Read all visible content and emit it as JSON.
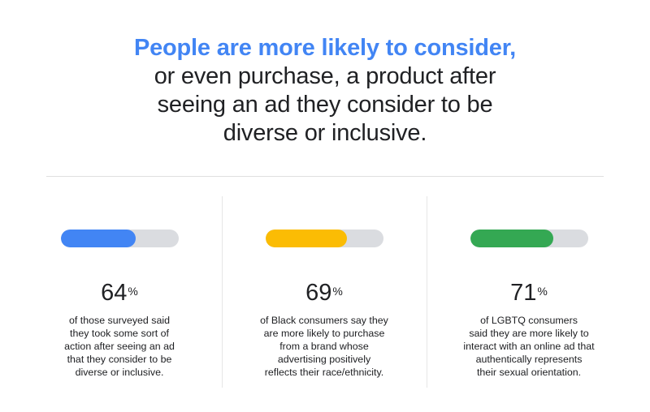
{
  "headline": {
    "accent": "People are more likely to consider,",
    "line2": "or even purchase, a product after",
    "line3": "seeing an ad they consider to be",
    "line4": "diverse or inclusive."
  },
  "colors": {
    "accent_text": "#4285f4",
    "track": "#dadce0"
  },
  "stats": [
    {
      "value": "64",
      "unit": "%",
      "level": 0.64,
      "color": "#4285f4",
      "description_lines": [
        "of those surveyed said",
        "they took some sort of",
        "action after seeing an ad",
        "that they consider to be",
        "diverse or inclusive."
      ]
    },
    {
      "value": "69",
      "unit": "%",
      "level": 0.69,
      "color": "#fbbc04",
      "description_lines": [
        "of Black consumers say they",
        "are more likely to purchase",
        "from a brand whose",
        "advertising positively",
        "reflects their race/ethnicity."
      ]
    },
    {
      "value": "71",
      "unit": "%",
      "level": 0.71,
      "color": "#34a853",
      "description_lines": [
        "of LGBTQ consumers",
        "said they are more likely to",
        "interact with an online ad that",
        "authentically represents",
        "their sexual orientation."
      ]
    }
  ]
}
